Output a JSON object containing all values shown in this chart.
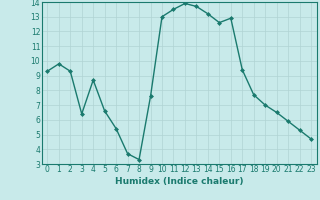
{
  "x": [
    0,
    1,
    2,
    3,
    4,
    5,
    6,
    7,
    8,
    9,
    10,
    11,
    12,
    13,
    14,
    15,
    16,
    17,
    18,
    19,
    20,
    21,
    22,
    23
  ],
  "y": [
    9.3,
    9.8,
    9.3,
    6.4,
    8.7,
    6.6,
    5.4,
    3.7,
    3.3,
    7.6,
    13.0,
    13.5,
    13.9,
    13.7,
    13.2,
    12.6,
    12.9,
    9.4,
    7.7,
    7.0,
    6.5,
    5.9,
    5.3,
    4.7
  ],
  "line_color": "#1a7a6e",
  "marker": "D",
  "marker_size": 2,
  "bg_color": "#c8eaea",
  "grid_color": "#b0d4d4",
  "xlabel": "Humidex (Indice chaleur)",
  "ylim": [
    3,
    14
  ],
  "xlim": [
    -0.5,
    23.5
  ],
  "yticks": [
    3,
    4,
    5,
    6,
    7,
    8,
    9,
    10,
    11,
    12,
    13,
    14
  ],
  "xticks": [
    0,
    1,
    2,
    3,
    4,
    5,
    6,
    7,
    8,
    9,
    10,
    11,
    12,
    13,
    14,
    15,
    16,
    17,
    18,
    19,
    20,
    21,
    22,
    23
  ],
  "xlabel_fontsize": 6.5,
  "tick_fontsize": 5.5,
  "tick_color": "#1a7a6e",
  "linewidth": 1.0
}
